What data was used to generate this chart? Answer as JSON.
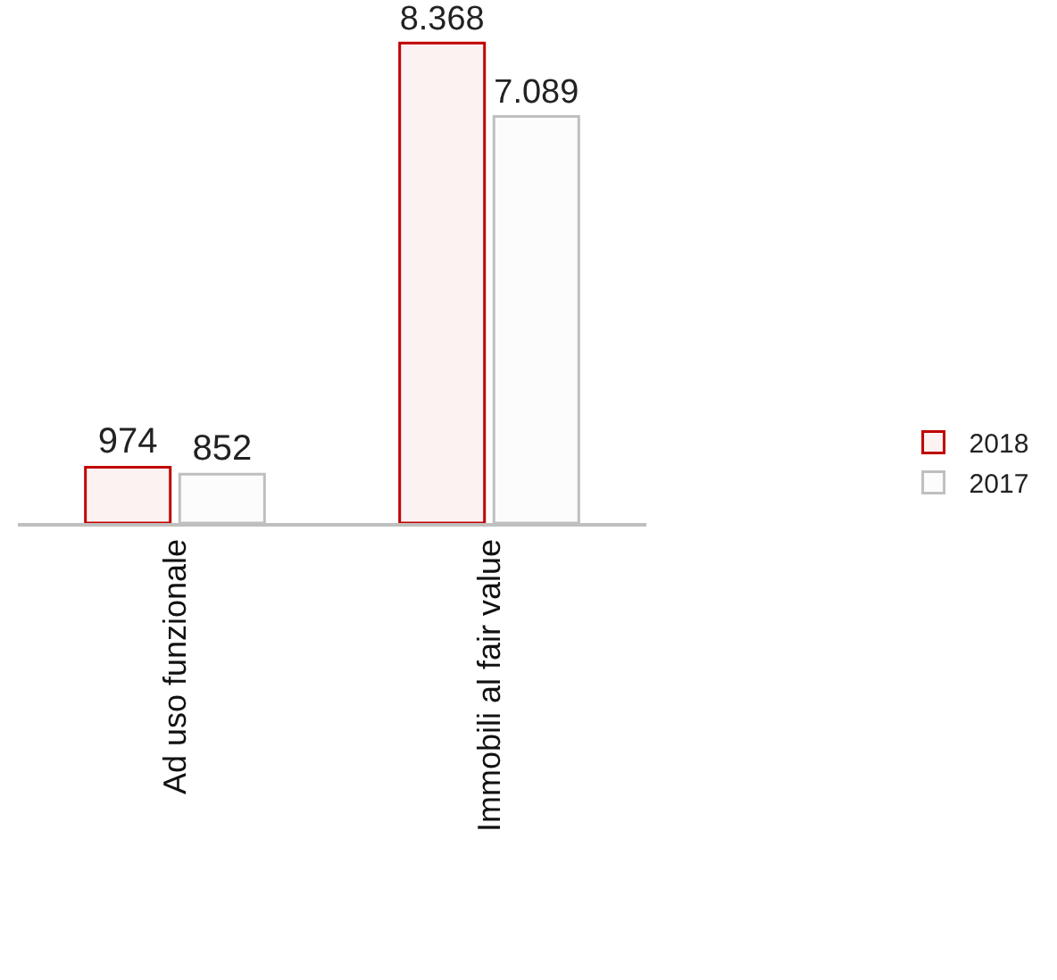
{
  "chart_data": {
    "type": "bar",
    "categories": [
      "Ad uso funzionale",
      "Immobili al fair value"
    ],
    "series": [
      {
        "name": "2018",
        "color": "#c00000",
        "values": [
          974,
          8368
        ],
        "value_labels": [
          "974",
          "8.368"
        ]
      },
      {
        "name": "2017",
        "color": "#bfbfbf",
        "values": [
          852,
          7089
        ],
        "value_labels": [
          "852",
          "7.089"
        ]
      }
    ],
    "tick_labels": "x",
    "grid": false,
    "legend": "right"
  }
}
